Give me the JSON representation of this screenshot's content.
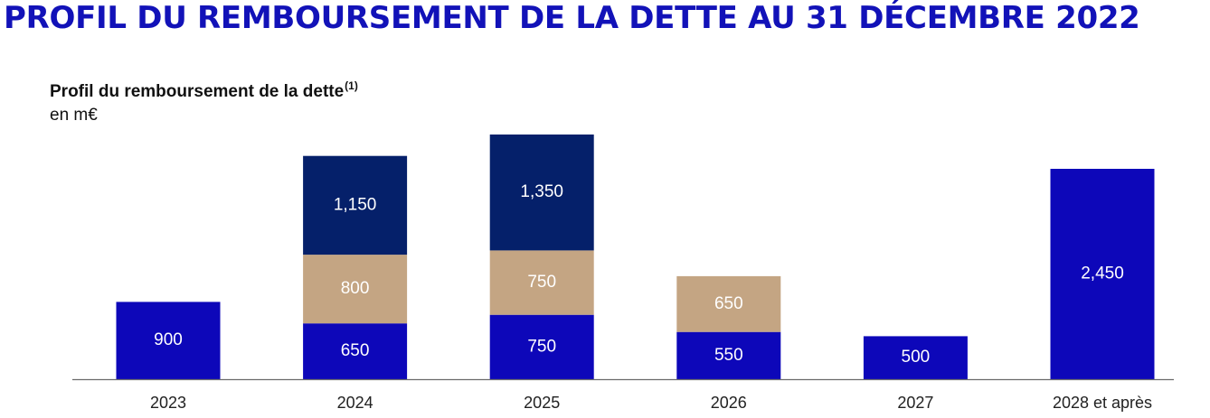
{
  "header": {
    "title": "PROFIL DU REMBOURSEMENT DE LA DETTE AU 31 DÉCEMBRE 2022"
  },
  "chart_data": {
    "type": "bar",
    "stacked": true,
    "title": "Profil du remboursement de la dette",
    "title_note": "(1)",
    "unit": "en m€",
    "categories": [
      "2023",
      "2024",
      "2025",
      "2026",
      "2027",
      "2028 et après"
    ],
    "series": [
      {
        "name": "series-1",
        "color": "#0d07b9",
        "values": [
          900,
          650,
          750,
          550,
          500,
          2450
        ],
        "labels": [
          "900",
          "650",
          "750",
          "550",
          "500",
          "2,450"
        ]
      },
      {
        "name": "series-2",
        "color": "#c4a583",
        "values": [
          0,
          800,
          750,
          650,
          0,
          0
        ],
        "labels": [
          "",
          "800",
          "750",
          "650",
          "",
          ""
        ]
      },
      {
        "name": "series-3",
        "color": "#05206a",
        "values": [
          0,
          1150,
          1350,
          0,
          0,
          0
        ],
        "labels": [
          "",
          "1,150",
          "1,350",
          "",
          "",
          ""
        ]
      }
    ],
    "grid": false,
    "legend": "none"
  }
}
